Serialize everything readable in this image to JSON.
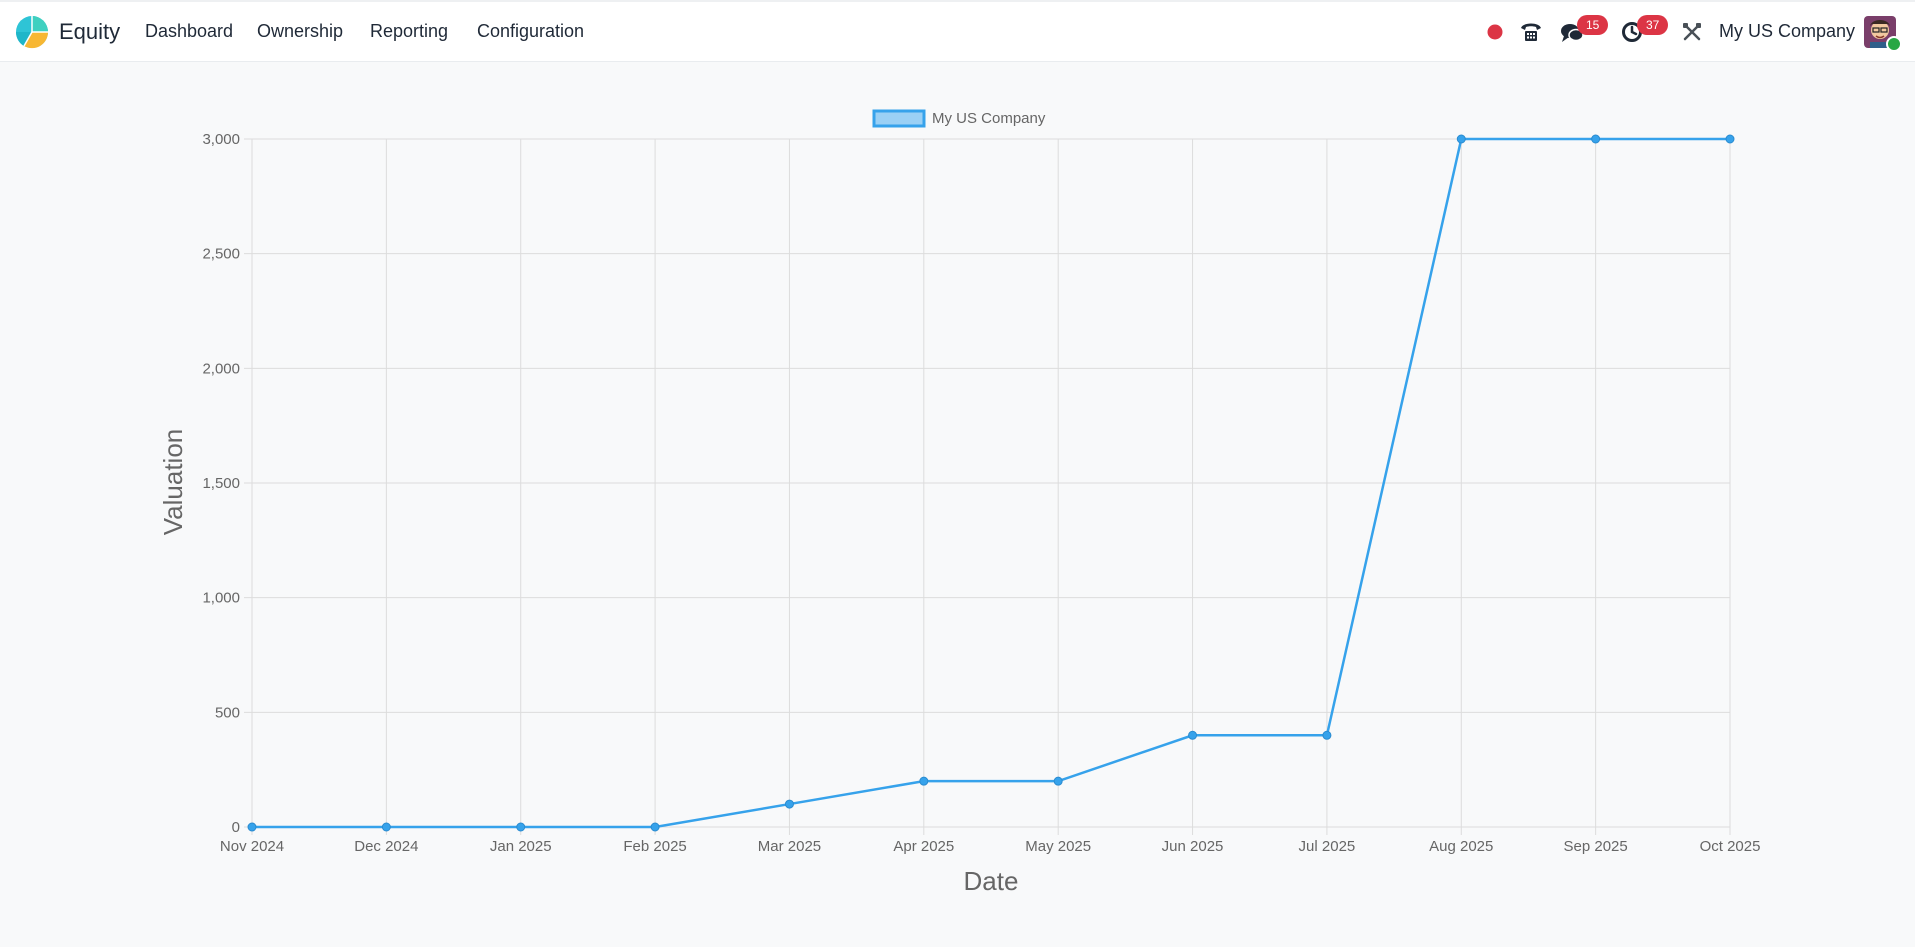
{
  "app": {
    "name": "Equity",
    "logo_icon": "equity-pie-logo-icon"
  },
  "nav": {
    "items": [
      {
        "label": "Dashboard"
      },
      {
        "label": "Ownership"
      },
      {
        "label": "Reporting"
      },
      {
        "label": "Configuration"
      }
    ]
  },
  "systray": {
    "record_icon": "record-dot-icon",
    "phone_icon": "phone-icon",
    "messages_icon": "chat-bubbles-icon",
    "messages_count": "15",
    "activities_icon": "clock-icon",
    "activities_count": "37",
    "tools_icon": "tools-icon",
    "company": "My US Company",
    "avatar_icon": "user-avatar-icon"
  },
  "colors": {
    "accent": "#36a2eb",
    "badge": "#dc3545",
    "record": "#dc3545"
  },
  "chart_data": {
    "type": "line",
    "xlabel": "Date",
    "ylabel": "Valuation",
    "categories": [
      "Nov 2024",
      "Dec 2024",
      "Jan 2025",
      "Feb 2025",
      "Mar 2025",
      "Apr 2025",
      "May 2025",
      "Jun 2025",
      "Jul 2025",
      "Aug 2025",
      "Sep 2025",
      "Oct 2025"
    ],
    "series": [
      {
        "name": "My US Company",
        "values": [
          0,
          0,
          0,
          0,
          100,
          200,
          200,
          400,
          400,
          3000,
          3000,
          3000
        ]
      }
    ],
    "ylim": [
      0,
      3000
    ],
    "yticks": [
      "0",
      "500",
      "1,000",
      "1,500",
      "2,000",
      "2,500",
      "3,000"
    ],
    "ytick_values": [
      0,
      500,
      1000,
      1500,
      2000,
      2500,
      3000
    ],
    "grid": true,
    "legend": "top-center"
  }
}
